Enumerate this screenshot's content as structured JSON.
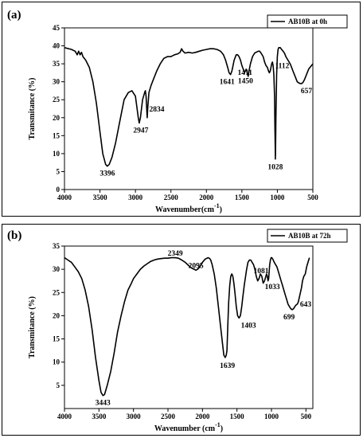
{
  "chart_data": [
    {
      "type": "line",
      "panel_label": "(a)",
      "legend": "AB10B at 0h",
      "legend_position": "top-right",
      "xlabel": "Wavenumber(cm",
      "xlabel_sup": "-1",
      "xlabel_suffix": ")",
      "ylabel": "Transmitance (%)",
      "xlim": [
        4000,
        500
      ],
      "ylim": [
        0,
        45
      ],
      "xticks": [
        "4000",
        "3500",
        "3000",
        "2500",
        "2000",
        "1500",
        "1000",
        "500"
      ],
      "yticks": [
        "0",
        "5",
        "10",
        "15",
        "20",
        "25",
        "30",
        "35",
        "40",
        "45"
      ],
      "grid": false,
      "series": [
        {
          "x": [
            4000,
            3900,
            3850,
            3820,
            3800,
            3780,
            3760,
            3740,
            3700,
            3650,
            3600,
            3550,
            3500,
            3460,
            3420,
            3396,
            3370,
            3330,
            3280,
            3220,
            3160,
            3100,
            3050,
            3000,
            2980,
            2960,
            2947,
            2930,
            2900,
            2870,
            2860,
            2850,
            2840,
            2834,
            2825,
            2810,
            2780,
            2740,
            2700,
            2650,
            2600,
            2550,
            2500,
            2450,
            2400,
            2370,
            2350,
            2330,
            2300,
            2250,
            2200,
            2150,
            2100,
            2050,
            2000,
            1950,
            1900,
            1850,
            1800,
            1760,
            1730,
            1700,
            1680,
            1660,
            1650,
            1641,
            1630,
            1610,
            1580,
            1560,
            1540,
            1520,
            1500,
            1480,
            1465,
            1450,
            1440,
            1430,
            1420,
            1411,
            1400,
            1380,
            1350,
            1320,
            1300,
            1270,
            1250,
            1230,
            1200,
            1180,
            1160,
            1140,
            1125,
            1112,
            1100,
            1090,
            1080,
            1070,
            1060,
            1050,
            1040,
            1035,
            1030,
            1028,
            1026,
            1020,
            1010,
            1000,
            990,
            980,
            960,
            940,
            920,
            900,
            880,
            850,
            820,
            800,
            780,
            760,
            740,
            720,
            700,
            680,
            657,
            640,
            620,
            600,
            580,
            560,
            540,
            520,
            500
          ],
          "y": [
            39.5,
            39,
            38.5,
            37.5,
            38.5,
            37.5,
            38.2,
            37,
            36,
            34,
            30,
            24,
            16,
            10,
            7,
            6.5,
            7,
            9,
            13,
            19,
            25,
            27,
            27.5,
            26,
            23,
            20,
            18.5,
            20,
            25,
            27,
            27.5,
            26,
            22,
            20,
            23,
            27,
            29,
            31,
            33,
            35,
            36.5,
            37,
            37,
            37.5,
            37.8,
            38.2,
            39.2,
            38.5,
            38,
            38.2,
            38,
            38.2,
            38.5,
            38.8,
            39,
            39.2,
            39.2,
            39,
            38.5,
            37.5,
            36,
            34,
            32.5,
            32,
            32.5,
            33,
            34,
            36,
            37.5,
            37.5,
            37,
            36,
            34.5,
            33.5,
            32.5,
            33,
            33.5,
            33,
            32,
            31.5,
            33,
            35,
            37,
            38,
            38.2,
            38.5,
            38.5,
            38,
            37,
            35.5,
            34.5,
            34,
            33,
            32.5,
            33,
            34,
            35,
            35.5,
            34.5,
            32,
            26,
            18,
            11,
            8.5,
            10,
            20,
            32,
            37,
            39,
            39.5,
            39.5,
            39,
            38.5,
            38,
            37,
            36,
            35,
            34,
            33,
            32,
            31,
            30,
            29.7,
            29.5,
            29.5,
            29.8,
            30.5,
            31.5,
            32.5,
            33.5,
            34,
            34.5,
            35
          ]
        }
      ],
      "annotations": [
        {
          "text": "3396",
          "x": 3396,
          "y": 6.5
        },
        {
          "text": "2947",
          "x": 2947,
          "y": 18.5
        },
        {
          "text": "2834",
          "x": 2834,
          "y": 20
        },
        {
          "text": "1641",
          "x": 1641,
          "y": 32
        },
        {
          "text": "1450",
          "x": 1450,
          "y": 32.5
        },
        {
          "text": "1411",
          "x": 1411,
          "y": 31.5
        },
        {
          "text": "1112",
          "x": 1112,
          "y": 32.5
        },
        {
          "text": "1028",
          "x": 1028,
          "y": 8.5
        },
        {
          "text": "657",
          "x": 657,
          "y": 29.5
        }
      ]
    },
    {
      "type": "line",
      "panel_label": "(b)",
      "legend": "AB10B at 72h",
      "legend_position": "top-right",
      "xlabel": "Wavenumber (cm",
      "xlabel_sup": "-1",
      "xlabel_suffix": ")",
      "ylabel": "Transmitance (%)",
      "xlim": [
        4000,
        400
      ],
      "ylim": [
        0,
        35
      ],
      "xticks": [
        "4000",
        "3500",
        "3000",
        "2500",
        "2000",
        "1500",
        "1000",
        "500"
      ],
      "yticks": [
        "5",
        "10",
        "15",
        "20",
        "25",
        "30",
        "35"
      ],
      "grid": false,
      "series": [
        {
          "x": [
            4000,
            3950,
            3900,
            3850,
            3800,
            3750,
            3700,
            3650,
            3600,
            3550,
            3500,
            3470,
            3443,
            3420,
            3380,
            3330,
            3280,
            3230,
            3180,
            3130,
            3080,
            3030,
            3000,
            2950,
            2900,
            2850,
            2800,
            2750,
            2700,
            2650,
            2600,
            2550,
            2500,
            2450,
            2400,
            2349,
            2300,
            2250,
            2200,
            2150,
            2120,
            2095,
            2070,
            2040,
            2000,
            1960,
            1920,
            1900,
            1880,
            1860,
            1830,
            1800,
            1770,
            1740,
            1710,
            1690,
            1670,
            1655,
            1645,
            1639,
            1630,
            1620,
            1605,
            1590,
            1575,
            1560,
            1545,
            1530,
            1510,
            1490,
            1470,
            1450,
            1430,
            1415,
            1403,
            1395,
            1380,
            1360,
            1340,
            1320,
            1300,
            1280,
            1260,
            1240,
            1220,
            1200,
            1180,
            1160,
            1140,
            1120,
            1100,
            1081,
            1070,
            1060,
            1050,
            1040,
            1033,
            1025,
            1015,
            1005,
            995,
            985,
            975,
            960,
            940,
            920,
            900,
            880,
            860,
            840,
            820,
            800,
            780,
            760,
            740,
            720,
            699,
            680,
            660,
            643,
            625,
            610,
            595,
            580,
            565,
            550,
            530,
            510,
            490,
            470,
            450
          ],
          "y": [
            32.5,
            32,
            31.5,
            30.5,
            29.5,
            28,
            25.5,
            22,
            17,
            11,
            6,
            3.5,
            2.8,
            3,
            5,
            8,
            12,
            16.5,
            20,
            23,
            25.5,
            27,
            28,
            29,
            30,
            30.7,
            31.2,
            31.7,
            32,
            32.2,
            32.3,
            32.4,
            32.4,
            32.5,
            32.5,
            32.4,
            32,
            31.5,
            30.8,
            30.2,
            30,
            29.8,
            30,
            30.5,
            31.5,
            32.2,
            32.5,
            32.4,
            32,
            31,
            29,
            26,
            22,
            18,
            14,
            11.5,
            11,
            11.5,
            12.5,
            15,
            19,
            23,
            26.5,
            28.5,
            29,
            28.5,
            27,
            25,
            22,
            20,
            19.5,
            20,
            22,
            24,
            25.5,
            26.5,
            28,
            30,
            31.5,
            32,
            32,
            31.5,
            31,
            30,
            28.5,
            27.5,
            28,
            29,
            28.5,
            27,
            27.5,
            28.5,
            29,
            28.5,
            27.5,
            28,
            29.5,
            31,
            32,
            32.5,
            32.5,
            32.3,
            32,
            31.5,
            31,
            30.5,
            29.5,
            28.5,
            27.5,
            26.5,
            25.5,
            24.5,
            23.5,
            22.5,
            22,
            21.5,
            21.3,
            21.5,
            22,
            22.3,
            22.5,
            23,
            24,
            25,
            26,
            27.5,
            28.5,
            29,
            30.5,
            31.5,
            32.5
          ]
        }
      ],
      "annotations": [
        {
          "text": "3443",
          "x": 3443,
          "y": 2.8
        },
        {
          "text": "2349",
          "x": 2349,
          "y": 32.4
        },
        {
          "text": "2095",
          "x": 2095,
          "y": 29.8
        },
        {
          "text": "1639",
          "x": 1639,
          "y": 11
        },
        {
          "text": "1403",
          "x": 1403,
          "y": 19.5
        },
        {
          "text": "1081",
          "x": 1081,
          "y": 28.5
        },
        {
          "text": "1033",
          "x": 1033,
          "y": 28
        },
        {
          "text": "699",
          "x": 699,
          "y": 21.3
        },
        {
          "text": "643",
          "x": 643,
          "y": 22
        }
      ]
    }
  ]
}
